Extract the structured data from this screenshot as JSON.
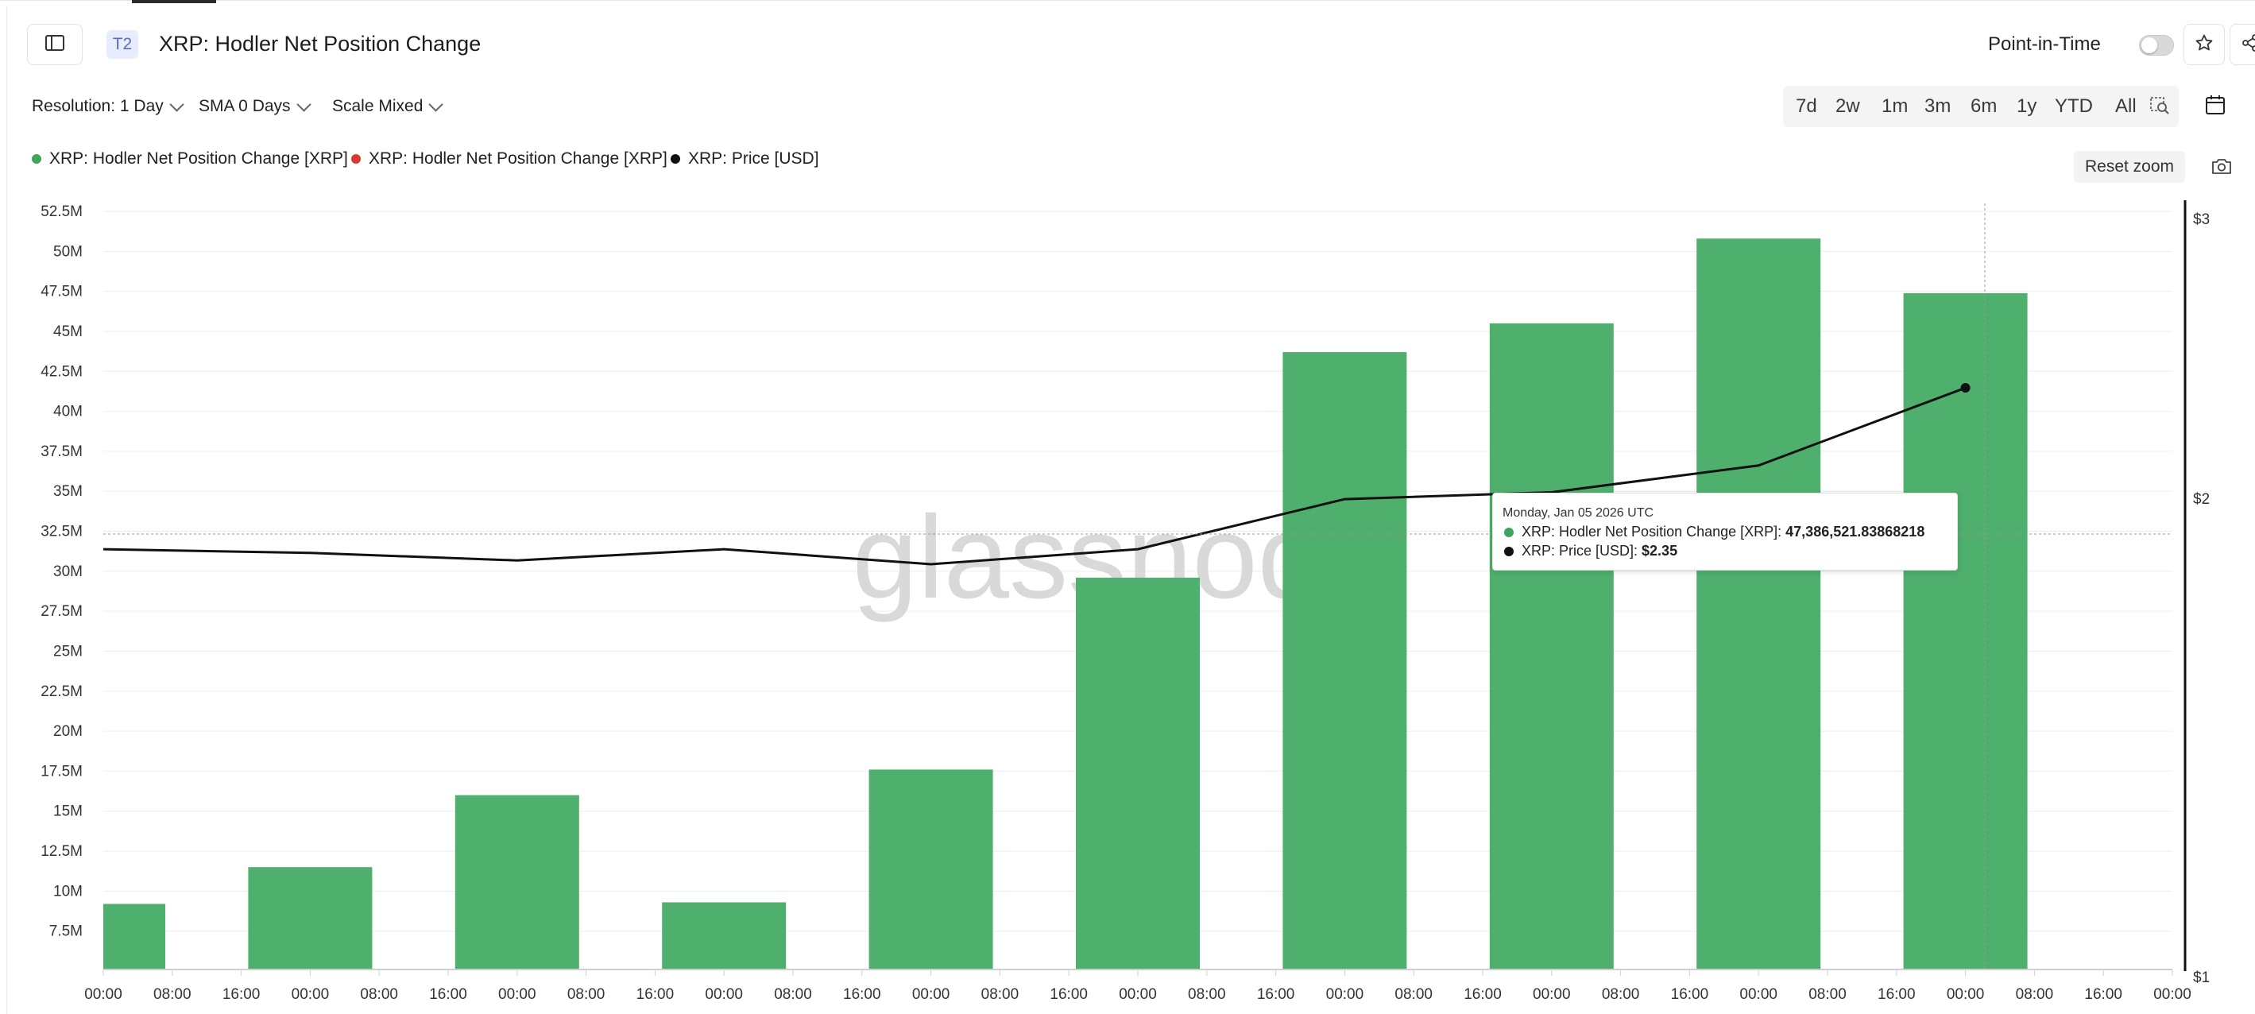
{
  "header": {
    "tier_badge": "T2",
    "title": "XRP: Hodler Net Position Change",
    "point_in_time_label": "Point-in-Time",
    "point_in_time_enabled": false,
    "sidebar_toggle_icon": "sidebar-toggle-icon",
    "star_icon": "star-icon",
    "share_icon": "share-icon"
  },
  "controls": {
    "resolution": "Resolution: 1 Day",
    "sma": "SMA 0 Days",
    "scale": "Scale Mixed"
  },
  "ranges": [
    "7d",
    "2w",
    "1m",
    "3m",
    "6m",
    "1y",
    "YTD",
    "All"
  ],
  "zoom_icon": "zoom-select-icon",
  "calendar_icon": "calendar-icon",
  "legend": [
    {
      "label": "XRP: Hodler Net Position Change [XRP]",
      "color": "#3fa45c"
    },
    {
      "label": "XRP: Hodler Net Position Change [XRP]",
      "color": "#d63a30"
    },
    {
      "label": "XRP: Price [USD]",
      "color": "#111111"
    }
  ],
  "reset_zoom": "Reset zoom",
  "camera_icon": "camera-icon",
  "watermark": "glassnode",
  "tooltip": {
    "date": "Monday, Jan 05 2026 UTC",
    "row1_label": "XRP: Hodler Net Position Change [XRP]: ",
    "row1_value": "47,386,521.83868218",
    "row2_label": "XRP: Price [USD]: ",
    "row2_value": "$2.35"
  },
  "chart_data": {
    "type": "bar",
    "x_tick_labels": [
      "00:00",
      "08:00",
      "16:00",
      "00:00",
      "08:00",
      "16:00",
      "00:00",
      "08:00",
      "16:00",
      "00:00",
      "08:00",
      "16:00",
      "00:00",
      "08:00",
      "16:00",
      "00:00",
      "08:00",
      "16:00",
      "00:00",
      "08:00",
      "16:00",
      "00:00",
      "08:00",
      "16:00",
      "00:00",
      "08:00",
      "16:00",
      "00:00",
      "08:00",
      "16:00",
      "00:00"
    ],
    "y_left_ticks": [
      "7.5M",
      "10M",
      "12.5M",
      "15M",
      "17.5M",
      "20M",
      "22.5M",
      "25M",
      "27.5M",
      "30M",
      "32.5M",
      "35M",
      "37.5M",
      "40M",
      "42.5M",
      "45M",
      "47.5M",
      "50M",
      "52.5M"
    ],
    "y_right_ticks": [
      "$1",
      "$2",
      "$3"
    ],
    "y_left_range": [
      5100000,
      52500000
    ],
    "y_right_range": [
      1,
      3
    ],
    "y_right_scale": "log",
    "grid": true,
    "series": [
      {
        "name": "XRP: Hodler Net Position Change [XRP]",
        "kind": "bar",
        "color": "#4faf6d",
        "values": [
          9200000,
          11500000,
          16000000,
          9300000,
          17600000,
          29600000,
          43700000,
          45500000,
          50800000,
          47386521.84
        ]
      },
      {
        "name": "XRP: Price [USD]",
        "kind": "line",
        "axis": "right",
        "color": "#111111",
        "values": [
          1.86,
          1.85,
          1.83,
          1.86,
          1.82,
          1.86,
          2.0,
          2.02,
          2.1,
          2.35
        ]
      }
    ]
  }
}
